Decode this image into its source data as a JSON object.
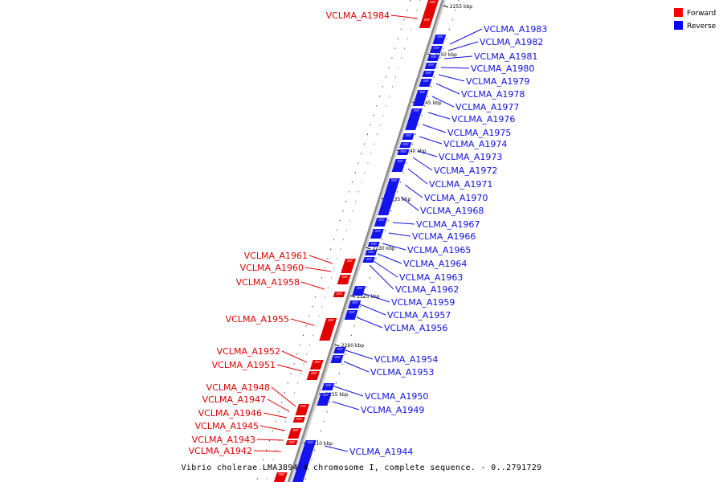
{
  "caption": "Vibrio cholerae LMA3894-4 chromosome I, complete sequence. - 0..2791729",
  "legend": [
    {
      "label": "Forward",
      "color": "#ff0000"
    },
    {
      "label": "Reverse",
      "color": "#0000ff"
    }
  ],
  "colors": {
    "forward": "#e00000",
    "reverse": "#1010e0",
    "backbone": "#8a8a8a"
  },
  "ticks": [
    "2255 kbp",
    "2250 kbp",
    "2245 kbp",
    "2240 kbp",
    "2235 kbp",
    "2230 kbp",
    "2225 kbp",
    "2220 kbp",
    "2215 kbp",
    "2210 kbp"
  ],
  "forward_genes": [
    "VCLMA_A1984",
    "VCLMA_A1961",
    "VCLMA_A1960",
    "VCLMA_A1958",
    "VCLMA_A1955",
    "VCLMA_A1952",
    "VCLMA_A1951",
    "VCLMA_A1948",
    "VCLMA_A1947",
    "VCLMA_A1946",
    "VCLMA_A1945",
    "VCLMA_A1943",
    "VCLMA_A1942"
  ],
  "reverse_genes": [
    "VCLMA_A1983",
    "VCLMA_A1982",
    "VCLMA_A1981",
    "VCLMA_A1980",
    "VCLMA_A1979",
    "VCLMA_A1978",
    "VCLMA_A1977",
    "VCLMA_A1976",
    "VCLMA_A1975",
    "VCLMA_A1974",
    "VCLMA_A1973",
    "VCLMA_A1972",
    "VCLMA_A1971",
    "VCLMA_A1970",
    "VCLMA_A1968",
    "VCLMA_A1967",
    "VCLMA_A1966",
    "VCLMA_A1965",
    "VCLMA_A1964",
    "VCLMA_A1963",
    "VCLMA_A1962",
    "VCLMA_A1959",
    "VCLMA_A1957",
    "VCLMA_A1956",
    "VCLMA_A1954",
    "VCLMA_A1953",
    "VCLMA_A1950",
    "VCLMA_A1949",
    "VCLMA_A1944"
  ]
}
